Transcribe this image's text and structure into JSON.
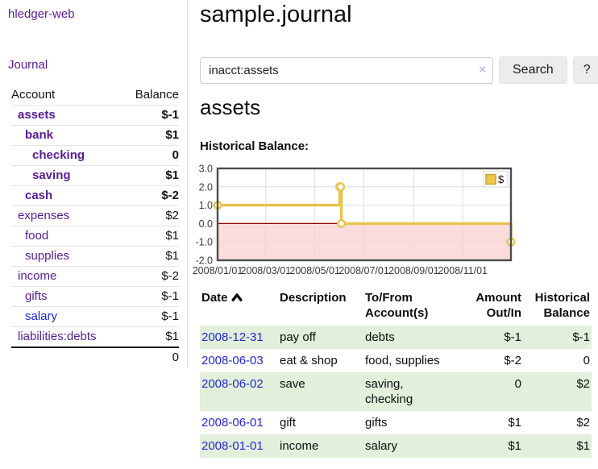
{
  "app": {
    "title": "hledger-web"
  },
  "sidebar": {
    "journal_link": "Journal",
    "accounts_table": {
      "col_account": "Account",
      "col_balance": "Balance",
      "rows": [
        {
          "name": "assets",
          "balance": "$-1",
          "name_class": "lnk-purple bold ind-1",
          "bal_class": "neg-strong bold"
        },
        {
          "name": "bank",
          "balance": "$1",
          "name_class": "lnk-purple bold ind-2",
          "bal_class": "bold"
        },
        {
          "name": "checking",
          "balance": "0",
          "name_class": "lnk-purple bold ind-3",
          "bal_class": "bold"
        },
        {
          "name": "saving",
          "balance": "$1",
          "name_class": "lnk-purple bold ind-3",
          "bal_class": "bold"
        },
        {
          "name": "cash",
          "balance": "$-2",
          "name_class": "lnk-purple bold ind-2",
          "bal_class": "neg-strong bold"
        },
        {
          "name": "expenses",
          "balance": "$2",
          "name_class": "lnk-purple ind-1",
          "bal_class": ""
        },
        {
          "name": "food",
          "balance": "$1",
          "name_class": "lnk-purple ind-2",
          "bal_class": ""
        },
        {
          "name": "supplies",
          "balance": "$1",
          "name_class": "lnk-purple ind-2",
          "bal_class": ""
        },
        {
          "name": "income",
          "balance": "$-2",
          "name_class": "lnk-purple ind-1",
          "bal_class": "neg-soft"
        },
        {
          "name": "gifts",
          "balance": "$-1",
          "name_class": "lnk-purple ind-2",
          "bal_class": "neg-soft"
        },
        {
          "name": "salary",
          "balance": "$-1",
          "name_class": "lnk-blue ind-2",
          "bal_class": "neg-soft"
        },
        {
          "name": "liabilities:debts",
          "balance": "$1",
          "name_class": "lnk-purple ind-1",
          "bal_class": ""
        }
      ],
      "total": "0"
    }
  },
  "main": {
    "title": "sample.journal",
    "search": {
      "value": "inacct:assets",
      "clear_icon": "×",
      "search_button": "Search",
      "help_button": "?"
    },
    "account_heading": "assets",
    "chart_label": "Historical Balance:",
    "register": {
      "headers": {
        "date": "Date",
        "description": "Description",
        "accounts": "To/From Account(s)",
        "amount": "Amount Out/In",
        "balance": "Historical Balance"
      },
      "rows": [
        {
          "date": "2008-12-31",
          "description": "pay off",
          "accounts": "debts",
          "amount": "$-1",
          "balance": "$-1",
          "amount_class": "neg-strong",
          "balance_class": "neg-strong"
        },
        {
          "date": "2008-06-03",
          "description": "eat & shop",
          "accounts": "food, supplies",
          "amount": "$-2",
          "balance": "0",
          "amount_class": "neg-strong",
          "balance_class": ""
        },
        {
          "date": "2008-06-02",
          "description": "save",
          "accounts": "saving, checking",
          "amount": "0",
          "balance": "$2",
          "amount_class": "",
          "balance_class": ""
        },
        {
          "date": "2008-06-01",
          "description": "gift",
          "accounts": "gifts",
          "amount": "$1",
          "balance": "$2",
          "amount_class": "",
          "balance_class": ""
        },
        {
          "date": "2008-01-01",
          "description": "income",
          "accounts": "salary",
          "amount": "$1",
          "balance": "$1",
          "amount_class": "",
          "balance_class": ""
        }
      ]
    }
  },
  "chart_data": {
    "type": "line",
    "step": true,
    "title": "Historical Balance:",
    "series": [
      {
        "name": "$",
        "points": [
          [
            "2008-01-01",
            1
          ],
          [
            "2008-06-01",
            2
          ],
          [
            "2008-06-02",
            2
          ],
          [
            "2008-06-03",
            0
          ],
          [
            "2008-12-31",
            -1
          ]
        ]
      }
    ],
    "ylim": [
      -2,
      3
    ],
    "yticks": [
      "3.0",
      "2.0",
      "1.0",
      "0.0",
      "-1.0",
      "-2.0"
    ],
    "xticks": [
      "2008/01/01",
      "2008/03/01",
      "2008/05/01",
      "2008/07/01",
      "2008/09/01",
      "2008/11/01"
    ],
    "x_epoch": "2008/01/01",
    "x_span_days": 365,
    "legend": {
      "label": "$",
      "position": "top-right"
    },
    "grid": true,
    "colors": {
      "line": "#e7c34c",
      "marker_fill": "#ffffff",
      "negative_region": "#f9d0d0",
      "zero_line": "#8b0000",
      "grid": "#dcdcdc",
      "border": "#4d4d4d",
      "legend_swatch": "#ecc84b",
      "legend_swatch_border": "#c9a22b",
      "tick_text": "#3a3a3a"
    }
  },
  "colors": {
    "link_purple": "#571c96",
    "link_blue": "#2222dd",
    "negative_strong": "#8b1a1a",
    "negative_soft": "#c4736e",
    "row_stripe_green": "#e2efdb"
  }
}
